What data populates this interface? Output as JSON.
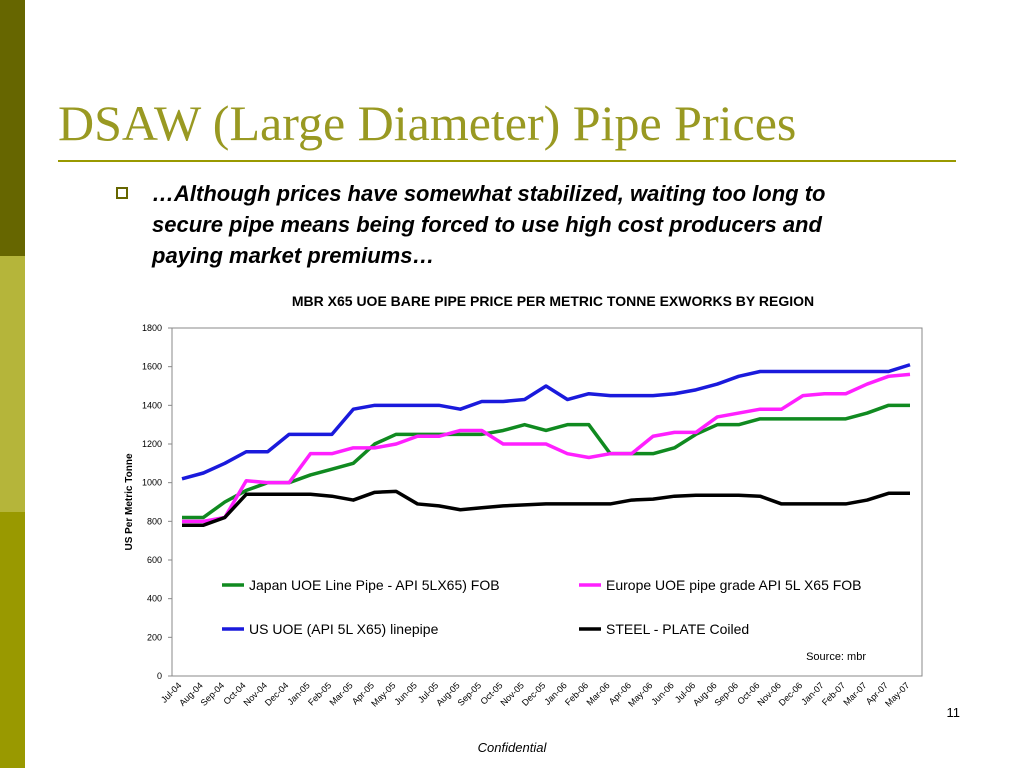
{
  "slide_title": "DSAW (Large Diameter) Pipe Prices",
  "bullet": [
    "…Although prices have somewhat stabilized, waiting too long to",
    "secure pipe means being forced to use high cost producers and",
    "paying market premiums…"
  ],
  "page_number": "11",
  "footer": "Confidential",
  "chart_data": {
    "type": "line",
    "title": "MBR X65 UOE BARE PIPE PRICE PER METRIC TONNE  EXWORKS BY REGION",
    "y_label": "US Per Metric Tonne",
    "annotation": "Source: mbr",
    "categories": [
      "Jul-04",
      "Aug-04",
      "Sep-04",
      "Oct-04",
      "Nov-04",
      "Dec-04",
      "Jan-05",
      "Feb-05",
      "Mar-05",
      "Apr-05",
      "May-05",
      "Jun-05",
      "Jul-05",
      "Aug-05",
      "Sep-05",
      "Oct-05",
      "Nov-05",
      "Dec-05",
      "Jan-06",
      "Feb-06",
      "Mar-06",
      "Apr-06",
      "May-06",
      "Jun-06",
      "Jul-06",
      "Aug-06",
      "Sep-06",
      "Oct-06",
      "Nov-06",
      "Dec-06",
      "Jan-07",
      "Feb-07",
      "Mar-07",
      "Apr-07",
      "May-07"
    ],
    "series": [
      {
        "name": "Japan UOE Line Pipe - API 5LX65) FOB",
        "color": "#108a20",
        "values": [
          820,
          820,
          900,
          960,
          1000,
          1000,
          1040,
          1070,
          1100,
          1200,
          1250,
          1250,
          1250,
          1250,
          1250,
          1270,
          1300,
          1270,
          1300,
          1300,
          1150,
          1150,
          1150,
          1180,
          1250,
          1300,
          1300,
          1330,
          1330,
          1330,
          1330,
          1330,
          1360,
          1400,
          1400
        ]
      },
      {
        "name": "Europe UOE pipe grade API 5L X65 FOB",
        "color": "#ff20ff",
        "values": [
          800,
          800,
          820,
          1010,
          1000,
          1000,
          1150,
          1150,
          1180,
          1180,
          1200,
          1240,
          1240,
          1270,
          1270,
          1200,
          1200,
          1200,
          1150,
          1130,
          1150,
          1150,
          1240,
          1260,
          1260,
          1340,
          1360,
          1380,
          1380,
          1450,
          1460,
          1460,
          1510,
          1550,
          1560
        ]
      },
      {
        "name": "US UOE (API 5L X65) linepipe",
        "color": "#1a1adc",
        "values": [
          1020,
          1050,
          1100,
          1160,
          1160,
          1250,
          1250,
          1250,
          1380,
          1400,
          1400,
          1400,
          1400,
          1380,
          1420,
          1420,
          1430,
          1500,
          1430,
          1460,
          1450,
          1450,
          1450,
          1460,
          1480,
          1510,
          1550,
          1575,
          1575,
          1575,
          1575,
          1575,
          1575,
          1575,
          1610
        ]
      },
      {
        "name": "STEEL - PLATE  Coiled",
        "color": "#000000",
        "values": [
          780,
          780,
          820,
          940,
          940,
          940,
          940,
          930,
          910,
          950,
          955,
          890,
          880,
          860,
          870,
          880,
          885,
          890,
          890,
          890,
          890,
          910,
          915,
          930,
          935,
          935,
          935,
          930,
          890,
          890,
          890,
          890,
          910,
          945,
          945
        ]
      }
    ],
    "ylim": [
      0,
      1800
    ],
    "yticks": [
      0,
      200,
      400,
      600,
      800,
      1000,
      1200,
      1400,
      1600,
      1800
    ],
    "grid": false
  }
}
